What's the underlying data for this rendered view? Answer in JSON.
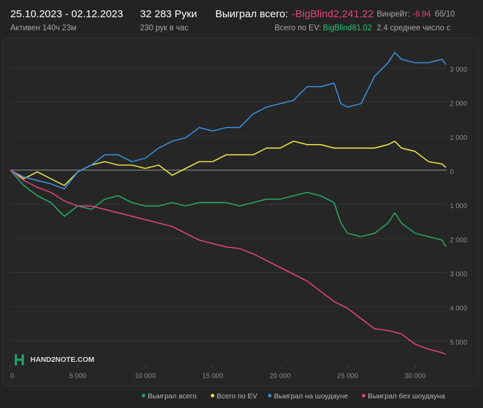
{
  "header": {
    "period": "25.10.2023 - 02.12.2023",
    "active": "Активен 140ч 23м",
    "hands": "32 283 Руки",
    "hands_per_hour": "230 рук в час",
    "won_label": "Выиграл всего:",
    "won_value": "-BigBlind2,241.22",
    "ev_label": "Всего по EV:",
    "ev_value": "BigBlind81.02",
    "winrate_label": "Винрейт:",
    "winrate_value": "-6.94",
    "winrate_unit": "бб/10",
    "average": "2.4 среднее число с"
  },
  "logo": "HAND2NOTE.COM",
  "chart_data": {
    "type": "line",
    "x": [
      0,
      1000,
      2000,
      3000,
      4000,
      5000,
      6000,
      7000,
      8000,
      9000,
      10000,
      11000,
      12000,
      13000,
      14000,
      15000,
      16000,
      17000,
      18000,
      19000,
      20000,
      21000,
      22000,
      23000,
      24000,
      24500,
      25000,
      26000,
      27000,
      28000,
      28500,
      29000,
      30000,
      31000,
      32000,
      32283
    ],
    "series": [
      {
        "name": "Выиграл всего",
        "color": "#27a86b",
        "values": [
          0,
          -450,
          -750,
          -950,
          -1350,
          -1050,
          -1150,
          -850,
          -750,
          -950,
          -1050,
          -1050,
          -950,
          -1050,
          -950,
          -950,
          -950,
          -1050,
          -950,
          -850,
          -850,
          -750,
          -650,
          -750,
          -950,
          -1550,
          -1850,
          -1950,
          -1850,
          -1550,
          -1250,
          -1550,
          -1850,
          -1950,
          -2050,
          -2241
        ]
      },
      {
        "name": "Всего по EV",
        "color": "#e8e84a",
        "values": [
          0,
          -250,
          -50,
          -250,
          -450,
          -50,
          150,
          250,
          150,
          150,
          50,
          150,
          -150,
          50,
          250,
          250,
          450,
          450,
          450,
          650,
          650,
          850,
          750,
          750,
          650,
          650,
          650,
          650,
          650,
          750,
          850,
          650,
          550,
          250,
          180,
          81
        ]
      },
      {
        "name": "Выиграл на шоудауне",
        "color": "#3d8fe0",
        "values": [
          0,
          -200,
          -300,
          -400,
          -550,
          -50,
          150,
          450,
          450,
          250,
          350,
          650,
          850,
          950,
          1250,
          1150,
          1250,
          1250,
          1650,
          1850,
          1950,
          2050,
          2450,
          2450,
          2550,
          1950,
          1850,
          1950,
          2750,
          3150,
          3450,
          3250,
          3150,
          3150,
          3250,
          3100
        ]
      },
      {
        "name": "Выиграл без шоудауна",
        "color": "#e0457a",
        "values": [
          0,
          -300,
          -500,
          -650,
          -900,
          -1050,
          -1050,
          -1150,
          -1250,
          -1350,
          -1450,
          -1550,
          -1650,
          -1850,
          -2050,
          -2150,
          -2250,
          -2300,
          -2450,
          -2650,
          -2850,
          -3050,
          -3250,
          -3550,
          -3850,
          -3950,
          -4050,
          -4350,
          -4650,
          -4700,
          -4750,
          -4800,
          -5100,
          -5250,
          -5350,
          -5400
        ]
      }
    ],
    "xlim": [
      0,
      32380
    ],
    "xticks": [
      0,
      {
        "value": 5000,
        "label": "5 000"
      },
      {
        "value": 10000,
        "label": "10 000"
      },
      {
        "value": 15000,
        "label": "15 000"
      },
      {
        "value": 20000,
        "label": "20 000"
      },
      {
        "value": 25000,
        "label": "25 000"
      },
      {
        "value": 30000,
        "label": "30 000"
      }
    ],
    "ylim": [
      -5720,
      4080
    ],
    "yticks": [
      {
        "value": 3000,
        "label": "3 000"
      },
      {
        "value": 2000,
        "label": "2 000"
      },
      {
        "value": 1000,
        "label": "1 000"
      },
      0,
      {
        "value": -1000,
        "label": "1 000"
      },
      {
        "value": -2000,
        "label": "2 000"
      },
      {
        "value": -3000,
        "label": "3 000"
      },
      {
        "value": -4000,
        "label": "4 000"
      },
      {
        "value": -5000,
        "label": "5 000"
      }
    ],
    "grid": true
  }
}
